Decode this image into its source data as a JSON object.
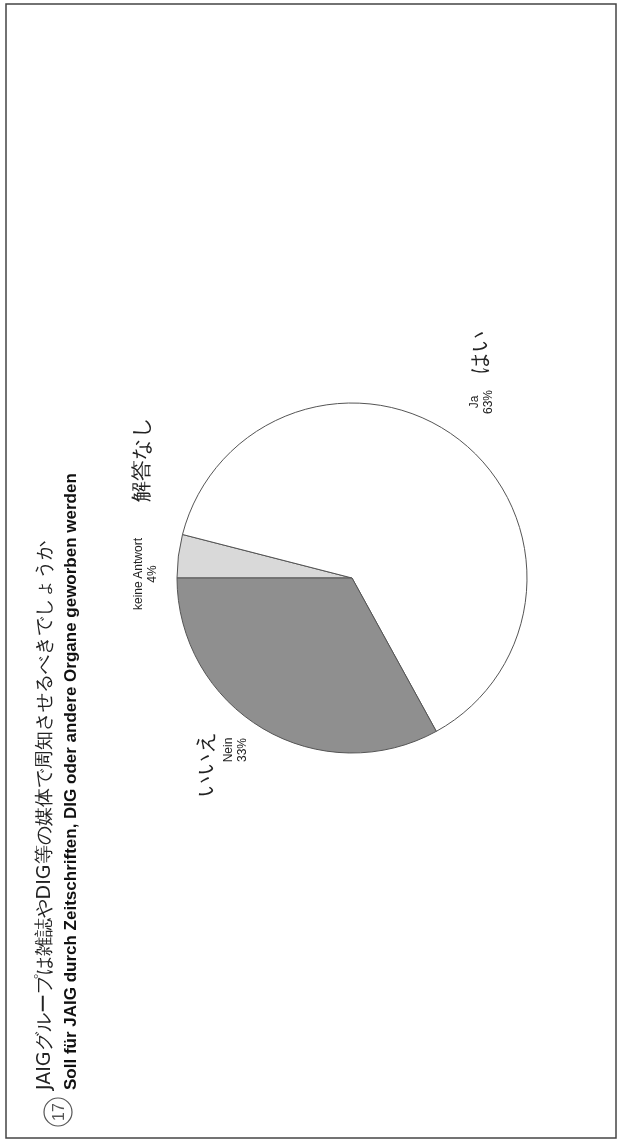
{
  "chart_data": {
    "type": "pie",
    "title": "JAIGグループは雑誌やDIG等の媒体で周知させるべきでしょうか",
    "subtitle": "Soll für JAIG durch Zeitschriften, DIG oder andere Organe geworben werden",
    "categories": [
      "keine Antwort",
      "Ja",
      "Nein"
    ],
    "values": [
      4,
      63,
      33
    ],
    "colors": [
      "#d9d9d9",
      "#ffffff",
      "#8f8f8f"
    ],
    "value_labels": [
      "4%",
      "63%",
      "33%"
    ],
    "annotations": [
      "17",
      "解答なし",
      "はい",
      "いいえ"
    ]
  }
}
